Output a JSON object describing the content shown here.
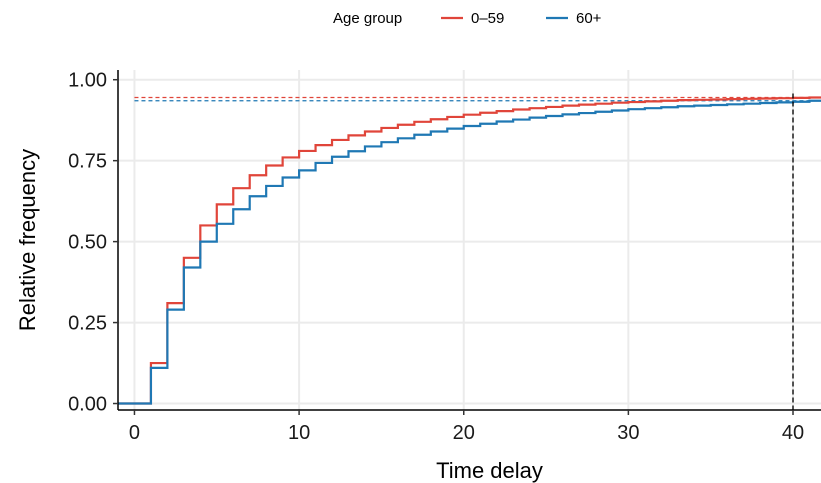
{
  "chart_data": {
    "type": "line",
    "step": true,
    "xlabel": "Time delay",
    "ylabel": "Relative frequency",
    "xlim": [
      -1,
      41.7
    ],
    "ylim": [
      -0.02,
      1.03
    ],
    "x_ticks": [
      0,
      10,
      20,
      30,
      40
    ],
    "x_tick_labels": [
      "0",
      "10",
      "20",
      "30",
      "40"
    ],
    "y_ticks": [
      0,
      0.25,
      0.5,
      0.75,
      1.0
    ],
    "y_tick_labels": [
      "0.00",
      "0.25",
      "0.50",
      "0.75",
      "1.00"
    ],
    "grid": true,
    "legend": {
      "position": "top",
      "title": "Age group",
      "entries": [
        "0–59",
        "60+"
      ]
    },
    "vline": {
      "x": 40,
      "style": "dashed",
      "color": "#000000"
    },
    "x": [
      0,
      1,
      2,
      3,
      4,
      5,
      6,
      7,
      8,
      9,
      10,
      11,
      12,
      13,
      14,
      15,
      16,
      17,
      18,
      19,
      20,
      21,
      22,
      23,
      24,
      25,
      26,
      27,
      28,
      29,
      30,
      31,
      32,
      33,
      34,
      35,
      36,
      37,
      38,
      39,
      40,
      41
    ],
    "series": [
      {
        "name": "0–59",
        "color": "#E0453A",
        "asymptote": 0.945,
        "values": [
          0.0,
          0.125,
          0.31,
          0.45,
          0.55,
          0.615,
          0.665,
          0.705,
          0.735,
          0.76,
          0.78,
          0.798,
          0.814,
          0.828,
          0.84,
          0.851,
          0.861,
          0.87,
          0.878,
          0.885,
          0.892,
          0.898,
          0.903,
          0.908,
          0.912,
          0.916,
          0.92,
          0.923,
          0.926,
          0.929,
          0.931,
          0.933,
          0.935,
          0.937,
          0.938,
          0.939,
          0.94,
          0.941,
          0.942,
          0.943,
          0.944,
          0.945
        ]
      },
      {
        "name": "60+",
        "color": "#1F78B4",
        "asymptote": 0.935,
        "values": [
          0.0,
          0.11,
          0.29,
          0.42,
          0.5,
          0.555,
          0.6,
          0.64,
          0.672,
          0.698,
          0.72,
          0.743,
          0.762,
          0.779,
          0.794,
          0.807,
          0.819,
          0.83,
          0.84,
          0.849,
          0.857,
          0.864,
          0.871,
          0.877,
          0.883,
          0.888,
          0.893,
          0.897,
          0.901,
          0.905,
          0.909,
          0.912,
          0.915,
          0.918,
          0.92,
          0.922,
          0.924,
          0.926,
          0.928,
          0.93,
          0.932,
          0.935
        ]
      }
    ]
  }
}
